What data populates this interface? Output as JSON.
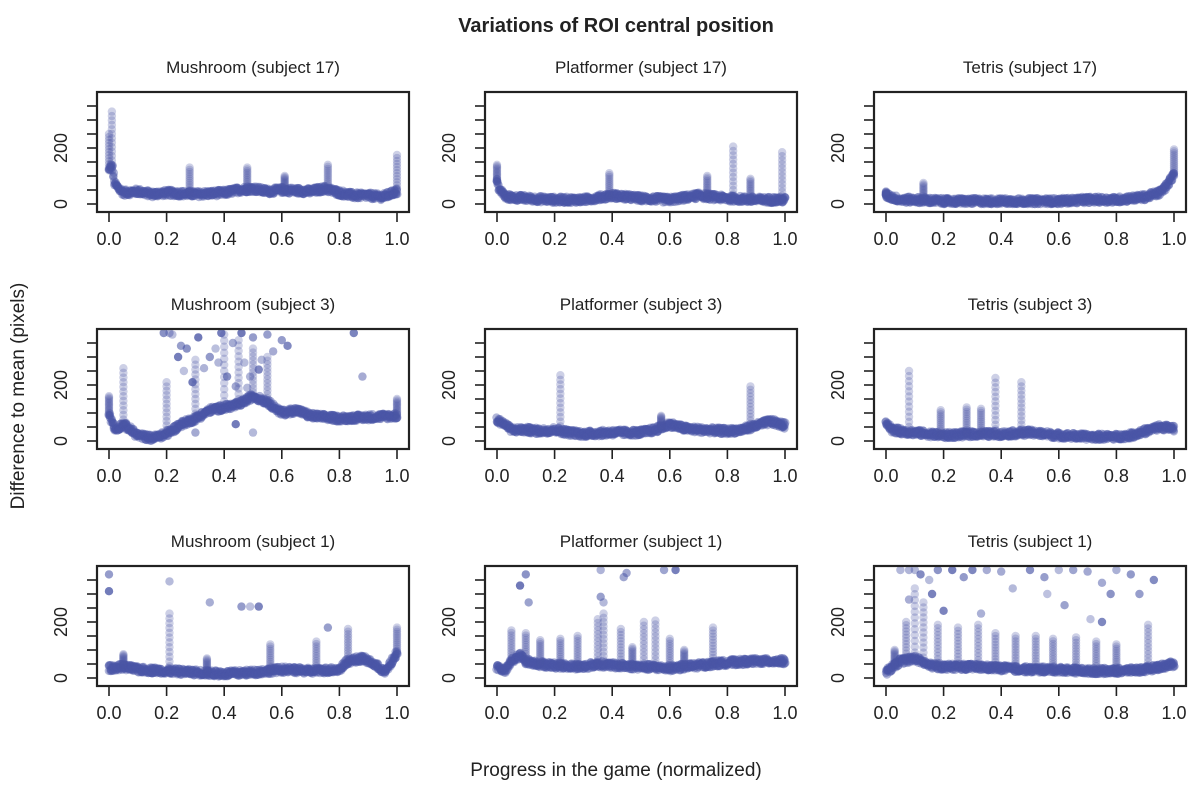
{
  "figure": {
    "title": "Variations of ROI central position",
    "xlabel": "Progress in the game (normalized)",
    "ylabel": "Difference to mean (pixels)"
  },
  "style": {
    "point_color": "#4a56a6",
    "point_opacity": 0.18,
    "axis_color": "#222222"
  },
  "chart_data": [
    {
      "type": "scatter",
      "title": "Mushroom (subject 17)",
      "xlim": [
        0,
        1
      ],
      "ylim": [
        0,
        400
      ],
      "xticks": [
        "0.0",
        "0.2",
        "0.4",
        "0.6",
        "0.8",
        "1.0"
      ],
      "yticks": [
        "0",
        "200"
      ],
      "profile": [
        [
          0,
          120
        ],
        [
          0.01,
          140
        ],
        [
          0.02,
          70
        ],
        [
          0.05,
          40
        ],
        [
          0.1,
          45
        ],
        [
          0.15,
          35
        ],
        [
          0.2,
          40
        ],
        [
          0.3,
          35
        ],
        [
          0.4,
          40
        ],
        [
          0.45,
          50
        ],
        [
          0.5,
          55
        ],
        [
          0.55,
          45
        ],
        [
          0.6,
          50
        ],
        [
          0.7,
          45
        ],
        [
          0.75,
          55
        ],
        [
          0.8,
          40
        ],
        [
          0.85,
          30
        ],
        [
          0.9,
          30
        ],
        [
          0.95,
          25
        ],
        [
          1.0,
          45
        ]
      ],
      "spikes": [
        [
          0.0,
          250
        ],
        [
          0.01,
          330
        ],
        [
          0.28,
          130
        ],
        [
          0.48,
          130
        ],
        [
          0.61,
          100
        ],
        [
          0.76,
          140
        ],
        [
          1.0,
          175
        ]
      ],
      "outliers": []
    },
    {
      "type": "scatter",
      "title": "Platformer (subject 17)",
      "xlim": [
        0,
        1
      ],
      "ylim": [
        0,
        400
      ],
      "xticks": [
        "0.0",
        "0.2",
        "0.4",
        "0.6",
        "0.8",
        "1.0"
      ],
      "yticks": [
        "0",
        "200"
      ],
      "profile": [
        [
          0,
          80
        ],
        [
          0.01,
          50
        ],
        [
          0.03,
          25
        ],
        [
          0.1,
          20
        ],
        [
          0.2,
          15
        ],
        [
          0.3,
          15
        ],
        [
          0.4,
          30
        ],
        [
          0.5,
          20
        ],
        [
          0.6,
          15
        ],
        [
          0.7,
          30
        ],
        [
          0.8,
          20
        ],
        [
          0.9,
          15
        ],
        [
          1.0,
          15
        ]
      ],
      "spikes": [
        [
          0.0,
          140
        ],
        [
          0.39,
          110
        ],
        [
          0.73,
          100
        ],
        [
          0.82,
          205
        ],
        [
          0.88,
          90
        ],
        [
          0.99,
          185
        ]
      ],
      "outliers": []
    },
    {
      "type": "scatter",
      "title": "Tetris (subject 17)",
      "xlim": [
        0,
        1
      ],
      "ylim": [
        0,
        400
      ],
      "xticks": [
        "0.0",
        "0.2",
        "0.4",
        "0.6",
        "0.8",
        "1.0"
      ],
      "yticks": [
        "0",
        "200"
      ],
      "profile": [
        [
          0,
          30
        ],
        [
          0.05,
          15
        ],
        [
          0.1,
          15
        ],
        [
          0.2,
          10
        ],
        [
          0.3,
          10
        ],
        [
          0.4,
          10
        ],
        [
          0.5,
          10
        ],
        [
          0.6,
          10
        ],
        [
          0.7,
          15
        ],
        [
          0.8,
          15
        ],
        [
          0.9,
          25
        ],
        [
          0.95,
          40
        ],
        [
          0.98,
          70
        ],
        [
          1.0,
          110
        ]
      ],
      "spikes": [
        [
          0.0,
          45
        ],
        [
          0.13,
          75
        ],
        [
          1.0,
          195
        ]
      ],
      "outliers": []
    },
    {
      "type": "scatter",
      "title": "Mushroom (subject 3)",
      "xlim": [
        0,
        1
      ],
      "ylim": [
        0,
        400
      ],
      "xticks": [
        "0.0",
        "0.2",
        "0.4",
        "0.6",
        "0.8",
        "1.0"
      ],
      "yticks": [
        "0",
        "200"
      ],
      "profile": [
        [
          0,
          100
        ],
        [
          0.02,
          40
        ],
        [
          0.05,
          60
        ],
        [
          0.1,
          20
        ],
        [
          0.15,
          10
        ],
        [
          0.2,
          25
        ],
        [
          0.25,
          60
        ],
        [
          0.3,
          80
        ],
        [
          0.35,
          110
        ],
        [
          0.4,
          120
        ],
        [
          0.45,
          130
        ],
        [
          0.5,
          160
        ],
        [
          0.55,
          140
        ],
        [
          0.6,
          100
        ],
        [
          0.65,
          110
        ],
        [
          0.7,
          90
        ],
        [
          0.8,
          80
        ],
        [
          0.9,
          85
        ],
        [
          1.0,
          90
        ]
      ],
      "spikes": [
        [
          0.0,
          160
        ],
        [
          0.05,
          260
        ],
        [
          0.2,
          210
        ],
        [
          0.3,
          290
        ],
        [
          0.4,
          380
        ],
        [
          0.45,
          360
        ],
        [
          0.5,
          330
        ],
        [
          0.55,
          300
        ],
        [
          1.0,
          150
        ]
      ],
      "outliers": [
        [
          0.19,
          390
        ],
        [
          0.21,
          395
        ],
        [
          0.22,
          380
        ],
        [
          0.24,
          300
        ],
        [
          0.25,
          340
        ],
        [
          0.26,
          250
        ],
        [
          0.27,
          330
        ],
        [
          0.29,
          210
        ],
        [
          0.31,
          370
        ],
        [
          0.33,
          260
        ],
        [
          0.35,
          300
        ],
        [
          0.37,
          330
        ],
        [
          0.38,
          280
        ],
        [
          0.39,
          395
        ],
        [
          0.41,
          230
        ],
        [
          0.43,
          350
        ],
        [
          0.44,
          195
        ],
        [
          0.46,
          390
        ],
        [
          0.47,
          280
        ],
        [
          0.48,
          190
        ],
        [
          0.49,
          230
        ],
        [
          0.5,
          370
        ],
        [
          0.52,
          255
        ],
        [
          0.53,
          290
        ],
        [
          0.55,
          380
        ],
        [
          0.57,
          320
        ],
        [
          0.6,
          360
        ],
        [
          0.62,
          340
        ],
        [
          0.88,
          230
        ],
        [
          0.85,
          400
        ],
        [
          0.22,
          40
        ],
        [
          0.3,
          30
        ],
        [
          0.44,
          60
        ],
        [
          0.5,
          30
        ]
      ]
    },
    {
      "type": "scatter",
      "title": "Platformer (subject 3)",
      "xlim": [
        0,
        1
      ],
      "ylim": [
        0,
        400
      ],
      "xticks": [
        "0.0",
        "0.2",
        "0.4",
        "0.6",
        "0.8",
        "1.0"
      ],
      "yticks": [
        "0",
        "200"
      ],
      "profile": [
        [
          0,
          75
        ],
        [
          0.02,
          65
        ],
        [
          0.05,
          40
        ],
        [
          0.1,
          40
        ],
        [
          0.15,
          35
        ],
        [
          0.2,
          40
        ],
        [
          0.25,
          30
        ],
        [
          0.3,
          25
        ],
        [
          0.4,
          30
        ],
        [
          0.5,
          30
        ],
        [
          0.55,
          40
        ],
        [
          0.6,
          60
        ],
        [
          0.65,
          45
        ],
        [
          0.7,
          40
        ],
        [
          0.8,
          35
        ],
        [
          0.85,
          40
        ],
        [
          0.9,
          55
        ],
        [
          0.95,
          70
        ],
        [
          1.0,
          55
        ]
      ],
      "spikes": [
        [
          0.22,
          235
        ],
        [
          0.88,
          195
        ],
        [
          0.57,
          90
        ]
      ],
      "outliers": []
    },
    {
      "type": "scatter",
      "title": "Tetris (subject 3)",
      "xlim": [
        0,
        1
      ],
      "ylim": [
        0,
        400
      ],
      "xticks": [
        "0.0",
        "0.2",
        "0.4",
        "0.6",
        "0.8",
        "1.0"
      ],
      "yticks": [
        "0",
        "200"
      ],
      "profile": [
        [
          0,
          70
        ],
        [
          0.02,
          40
        ],
        [
          0.05,
          35
        ],
        [
          0.1,
          30
        ],
        [
          0.15,
          25
        ],
        [
          0.2,
          20
        ],
        [
          0.3,
          25
        ],
        [
          0.4,
          25
        ],
        [
          0.5,
          30
        ],
        [
          0.6,
          20
        ],
        [
          0.7,
          15
        ],
        [
          0.8,
          15
        ],
        [
          0.85,
          20
        ],
        [
          0.9,
          35
        ],
        [
          0.95,
          50
        ],
        [
          1.0,
          45
        ]
      ],
      "spikes": [
        [
          0.08,
          250
        ],
        [
          0.19,
          110
        ],
        [
          0.28,
          120
        ],
        [
          0.33,
          115
        ],
        [
          0.38,
          225
        ],
        [
          0.47,
          210
        ]
      ],
      "outliers": []
    },
    {
      "type": "scatter",
      "title": "Mushroom (subject 1)",
      "xlim": [
        0,
        1
      ],
      "ylim": [
        0,
        400
      ],
      "xticks": [
        "0.0",
        "0.2",
        "0.4",
        "0.6",
        "0.8",
        "1.0"
      ],
      "yticks": [
        "0",
        "200"
      ],
      "profile": [
        [
          0,
          35
        ],
        [
          0.05,
          40
        ],
        [
          0.1,
          30
        ],
        [
          0.2,
          25
        ],
        [
          0.3,
          20
        ],
        [
          0.4,
          15
        ],
        [
          0.5,
          20
        ],
        [
          0.6,
          30
        ],
        [
          0.7,
          25
        ],
        [
          0.8,
          30
        ],
        [
          0.83,
          60
        ],
        [
          0.88,
          70
        ],
        [
          0.92,
          50
        ],
        [
          0.96,
          20
        ],
        [
          1.0,
          90
        ]
      ],
      "spikes": [
        [
          0.05,
          85
        ],
        [
          0.21,
          230
        ],
        [
          0.34,
          70
        ],
        [
          0.56,
          120
        ],
        [
          0.72,
          130
        ],
        [
          0.83,
          175
        ],
        [
          1.0,
          180
        ]
      ],
      "outliers": [
        [
          0.0,
          370
        ],
        [
          0.0,
          310
        ],
        [
          0.21,
          345
        ],
        [
          0.35,
          270
        ],
        [
          0.46,
          255
        ],
        [
          0.49,
          255
        ],
        [
          0.52,
          255
        ],
        [
          0.76,
          180
        ]
      ]
    },
    {
      "type": "scatter",
      "title": "Platformer (subject 1)",
      "xlim": [
        0,
        1
      ],
      "ylim": [
        0,
        400
      ],
      "xticks": [
        "0.0",
        "0.2",
        "0.4",
        "0.6",
        "0.8",
        "1.0"
      ],
      "yticks": [
        "0",
        "200"
      ],
      "profile": [
        [
          0,
          40
        ],
        [
          0.03,
          25
        ],
        [
          0.05,
          60
        ],
        [
          0.08,
          80
        ],
        [
          0.1,
          60
        ],
        [
          0.15,
          50
        ],
        [
          0.2,
          45
        ],
        [
          0.3,
          40
        ],
        [
          0.35,
          50
        ],
        [
          0.4,
          45
        ],
        [
          0.5,
          40
        ],
        [
          0.6,
          35
        ],
        [
          0.7,
          45
        ],
        [
          0.8,
          55
        ],
        [
          0.9,
          60
        ],
        [
          1.0,
          60
        ]
      ],
      "spikes": [
        [
          0.05,
          170
        ],
        [
          0.1,
          160
        ],
        [
          0.15,
          135
        ],
        [
          0.22,
          140
        ],
        [
          0.28,
          150
        ],
        [
          0.35,
          210
        ],
        [
          0.37,
          230
        ],
        [
          0.43,
          175
        ],
        [
          0.47,
          110
        ],
        [
          0.51,
          200
        ],
        [
          0.55,
          205
        ],
        [
          0.6,
          140
        ],
        [
          0.65,
          100
        ],
        [
          0.75,
          180
        ]
      ],
      "outliers": [
        [
          0.1,
          370
        ],
        [
          0.08,
          330
        ],
        [
          0.11,
          270
        ],
        [
          0.36,
          290
        ],
        [
          0.36,
          390
        ],
        [
          0.44,
          360
        ],
        [
          0.45,
          375
        ],
        [
          0.58,
          400
        ],
        [
          0.62,
          400
        ],
        [
          0.37,
          270
        ]
      ]
    },
    {
      "type": "scatter",
      "title": "Tetris (subject 1)",
      "xlim": [
        0,
        1
      ],
      "ylim": [
        0,
        400
      ],
      "xticks": [
        "0.0",
        "0.2",
        "0.4",
        "0.6",
        "0.8",
        "1.0"
      ],
      "yticks": [
        "0",
        "200"
      ],
      "profile": [
        [
          0,
          20
        ],
        [
          0.05,
          60
        ],
        [
          0.1,
          70
        ],
        [
          0.15,
          45
        ],
        [
          0.2,
          40
        ],
        [
          0.3,
          40
        ],
        [
          0.4,
          35
        ],
        [
          0.5,
          30
        ],
        [
          0.6,
          30
        ],
        [
          0.7,
          25
        ],
        [
          0.8,
          25
        ],
        [
          0.9,
          30
        ],
        [
          0.95,
          40
        ],
        [
          1.0,
          50
        ]
      ],
      "spikes": [
        [
          0.03,
          100
        ],
        [
          0.07,
          200
        ],
        [
          0.1,
          320
        ],
        [
          0.13,
          270
        ],
        [
          0.18,
          190
        ],
        [
          0.25,
          180
        ],
        [
          0.32,
          190
        ],
        [
          0.38,
          160
        ],
        [
          0.45,
          150
        ],
        [
          0.52,
          150
        ],
        [
          0.58,
          140
        ],
        [
          0.66,
          145
        ],
        [
          0.73,
          130
        ],
        [
          0.8,
          120
        ],
        [
          0.91,
          190
        ]
      ],
      "outliers": [
        [
          0.05,
          390
        ],
        [
          0.08,
          400
        ],
        [
          0.1,
          400
        ],
        [
          0.12,
          370
        ],
        [
          0.15,
          350
        ],
        [
          0.18,
          395
        ],
        [
          0.23,
          390
        ],
        [
          0.27,
          360
        ],
        [
          0.3,
          400
        ],
        [
          0.35,
          395
        ],
        [
          0.4,
          380
        ],
        [
          0.44,
          320
        ],
        [
          0.5,
          400
        ],
        [
          0.55,
          360
        ],
        [
          0.6,
          390
        ],
        [
          0.65,
          400
        ],
        [
          0.7,
          380
        ],
        [
          0.75,
          340
        ],
        [
          0.78,
          300
        ],
        [
          0.8,
          395
        ],
        [
          0.85,
          370
        ],
        [
          0.88,
          300
        ],
        [
          0.93,
          350
        ],
        [
          0.08,
          280
        ],
        [
          0.16,
          300
        ],
        [
          0.2,
          240
        ],
        [
          0.33,
          230
        ],
        [
          0.56,
          300
        ],
        [
          0.62,
          260
        ],
        [
          0.71,
          210
        ],
        [
          0.75,
          200
        ]
      ]
    }
  ]
}
